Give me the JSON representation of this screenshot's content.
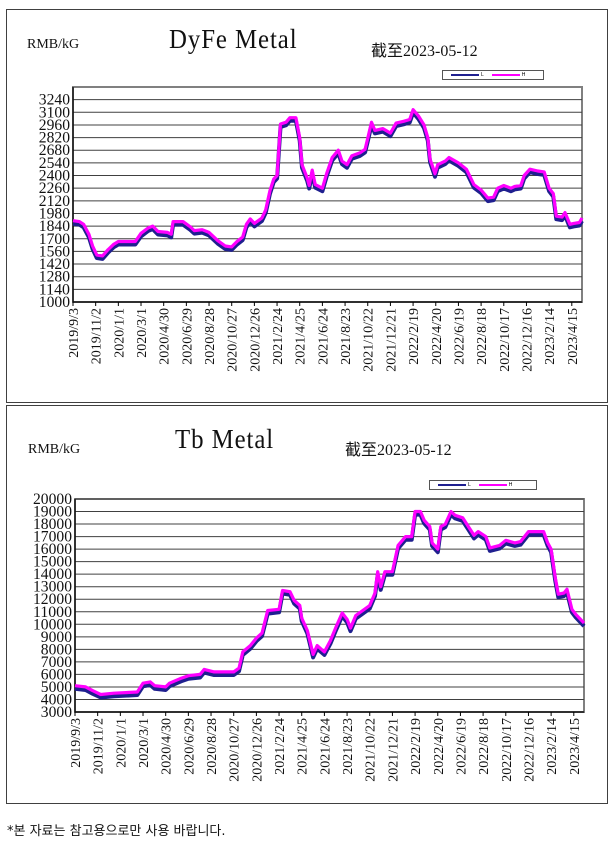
{
  "footnote": "*본 자료는 참고용으로만 사용 바랍니다.",
  "colors": {
    "L": "#1f1f8f",
    "H": "#ff00ff",
    "grid": "#404040"
  },
  "chart_data": [
    {
      "type": "line",
      "title": "DyFe Metal",
      "unit_label": "RMB/kG",
      "as_of": "截至2023-05-12",
      "ylim": [
        1000,
        3380
      ],
      "yticks": [
        1000,
        1140,
        1280,
        1420,
        1560,
        1700,
        1840,
        1980,
        2120,
        2260,
        2400,
        2540,
        2680,
        2820,
        2960,
        3100,
        3240
      ],
      "xlim": [
        "2019/9/3",
        "2023/5/12"
      ],
      "xticks": [
        "2019/9/3",
        "2019/11/2",
        "2020/1/1",
        "2020/3/1",
        "2020/4/30",
        "2020/6/29",
        "2020/8/28",
        "2020/10/27",
        "2020/12/26",
        "2021/2/24",
        "2021/4/25",
        "2021/6/24",
        "2021/8/23",
        "2021/10/22",
        "2021/12/21",
        "2022/2/19",
        "2022/4/20",
        "2022/6/19",
        "2022/8/18",
        "2022/10/17",
        "2022/12/16",
        "2023/2/14",
        "2023/4/15"
      ],
      "grid": true,
      "legend": "top-right",
      "x": [
        "2019/9/3",
        "2019/9/20",
        "2019/10/1",
        "2019/10/15",
        "2019/10/25",
        "2019/11/5",
        "2019/11/20",
        "2019/12/5",
        "2019/12/20",
        "2020/1/1",
        "2020/2/15",
        "2020/3/1",
        "2020/3/20",
        "2020/4/1",
        "2020/4/15",
        "2020/5/10",
        "2020/5/20",
        "2020/5/25",
        "2020/6/20",
        "2020/7/10",
        "2020/7/20",
        "2020/8/10",
        "2020/8/28",
        "2020/9/20",
        "2020/10/10",
        "2020/10/27",
        "2020/11/10",
        "2020/11/25",
        "2020/12/5",
        "2020/12/15",
        "2020/12/26",
        "2021/1/15",
        "2021/1/25",
        "2021/2/5",
        "2021/2/15",
        "2021/2/24",
        "2021/3/5",
        "2021/3/20",
        "2021/3/30",
        "2021/4/15",
        "2021/4/25",
        "2021/5/1",
        "2021/5/15",
        "2021/5/20",
        "2021/5/28",
        "2021/6/5",
        "2021/6/24",
        "2021/7/5",
        "2021/7/20",
        "2021/8/5",
        "2021/8/15",
        "2021/8/28",
        "2021/9/10",
        "2021/10/1",
        "2021/10/15",
        "2021/10/22",
        "2021/11/1",
        "2021/11/10",
        "2021/12/1",
        "2021/12/21",
        "2022/1/5",
        "2022/1/25",
        "2022/2/10",
        "2022/2/19",
        "2022/3/5",
        "2022/3/20",
        "2022/3/30",
        "2022/4/5",
        "2022/4/18",
        "2022/4/25",
        "2022/5/15",
        "2022/5/25",
        "2022/6/19",
        "2022/7/10",
        "2022/7/30",
        "2022/8/18",
        "2022/9/5",
        "2022/9/20",
        "2022/10/1",
        "2022/10/17",
        "2022/11/5",
        "2022/11/15",
        "2022/12/1",
        "2022/12/10",
        "2022/12/25",
        "2023/1/15",
        "2023/2/1",
        "2023/2/14",
        "2023/2/25",
        "2023/3/5",
        "2023/3/20",
        "2023/3/28",
        "2023/4/10",
        "2023/4/20",
        "2023/5/5",
        "2023/5/12"
      ],
      "series": [
        {
          "name": "L",
          "values": [
            1880,
            1870,
            1840,
            1730,
            1600,
            1500,
            1490,
            1560,
            1620,
            1650,
            1650,
            1740,
            1800,
            1820,
            1760,
            1750,
            1730,
            1870,
            1870,
            1810,
            1770,
            1780,
            1750,
            1660,
            1600,
            1590,
            1650,
            1700,
            1840,
            1900,
            1850,
            1910,
            2000,
            2210,
            2340,
            2380,
            2950,
            2970,
            3020,
            3020,
            2800,
            2500,
            2350,
            2270,
            2440,
            2280,
            2240,
            2400,
            2580,
            2660,
            2540,
            2500,
            2600,
            2630,
            2670,
            2790,
            2970,
            2880,
            2900,
            2850,
            2960,
            2980,
            3000,
            3110,
            3040,
            2940,
            2800,
            2560,
            2400,
            2500,
            2540,
            2580,
            2520,
            2450,
            2280,
            2220,
            2130,
            2140,
            2240,
            2270,
            2240,
            2260,
            2270,
            2380,
            2450,
            2430,
            2420,
            2240,
            2180,
            1930,
            1920,
            1970,
            1840,
            1850,
            1860,
            1910
          ]
        },
        {
          "name": "H",
          "values": [
            1900,
            1890,
            1860,
            1750,
            1620,
            1520,
            1510,
            1580,
            1640,
            1670,
            1670,
            1760,
            1820,
            1840,
            1780,
            1770,
            1750,
            1890,
            1890,
            1830,
            1790,
            1800,
            1770,
            1680,
            1620,
            1610,
            1670,
            1720,
            1860,
            1920,
            1870,
            1930,
            2020,
            2230,
            2360,
            2400,
            2970,
            2990,
            3040,
            3040,
            2820,
            2520,
            2370,
            2290,
            2460,
            2300,
            2260,
            2420,
            2600,
            2680,
            2560,
            2520,
            2620,
            2650,
            2690,
            2810,
            2990,
            2900,
            2920,
            2870,
            2980,
            3000,
            3020,
            3130,
            3060,
            2960,
            2820,
            2580,
            2420,
            2520,
            2560,
            2600,
            2540,
            2470,
            2300,
            2240,
            2150,
            2160,
            2260,
            2290,
            2260,
            2280,
            2290,
            2400,
            2470,
            2450,
            2440,
            2260,
            2200,
            1950,
            1940,
            1990,
            1860,
            1870,
            1880,
            1930
          ]
        }
      ]
    },
    {
      "type": "line",
      "title": "Tb Metal",
      "unit_label": "RMB/kG",
      "as_of": "截至2023-05-12",
      "ylim": [
        3000,
        20000
      ],
      "yticks": [
        3000,
        4000,
        5000,
        6000,
        7000,
        8000,
        9000,
        10000,
        11000,
        12000,
        13000,
        14000,
        15000,
        16000,
        17000,
        18000,
        19000,
        20000
      ],
      "xlim": [
        "2019/9/3",
        "2023/5/12"
      ],
      "xticks": [
        "2019/9/3",
        "2019/11/2",
        "2020/1/1",
        "2020/3/1",
        "2020/4/30",
        "2020/6/29",
        "2020/8/28",
        "2020/10/27",
        "2020/12/26",
        "2021/2/24",
        "2021/4/25",
        "2021/6/24",
        "2021/8/23",
        "2021/10/22",
        "2021/12/21",
        "2022/2/19",
        "2022/4/20",
        "2022/6/19",
        "2022/8/18",
        "2022/10/17",
        "2022/12/16",
        "2023/2/14",
        "2023/4/15"
      ],
      "grid": true,
      "legend": "top-right",
      "x": [
        "2019/9/3",
        "2019/10/1",
        "2019/10/20",
        "2019/11/10",
        "2019/12/15",
        "2020/2/15",
        "2020/3/1",
        "2020/3/20",
        "2020/4/1",
        "2020/4/30",
        "2020/5/10",
        "2020/6/10",
        "2020/6/29",
        "2020/7/30",
        "2020/8/10",
        "2020/9/5",
        "2020/10/27",
        "2020/11/10",
        "2020/11/20",
        "2020/12/10",
        "2020/12/26",
        "2021/1/10",
        "2021/1/25",
        "2021/2/24",
        "2021/3/5",
        "2021/3/25",
        "2021/4/5",
        "2021/4/20",
        "2021/4/25",
        "2021/5/10",
        "2021/5/25",
        "2021/6/5",
        "2021/6/24",
        "2021/7/10",
        "2021/7/25",
        "2021/8/10",
        "2021/8/23",
        "2021/9/1",
        "2021/9/15",
        "2021/10/22",
        "2021/11/5",
        "2021/11/12",
        "2021/11/20",
        "2021/12/1",
        "2021/12/21",
        "2022/1/5",
        "2022/1/25",
        "2022/2/10",
        "2022/2/19",
        "2022/3/5",
        "2022/3/15",
        "2022/3/30",
        "2022/4/5",
        "2022/4/20",
        "2022/4/28",
        "2022/5/10",
        "2022/5/25",
        "2022/6/5",
        "2022/6/25",
        "2022/7/10",
        "2022/7/25",
        "2022/8/5",
        "2022/8/25",
        "2022/9/5",
        "2022/10/1",
        "2022/10/17",
        "2022/11/10",
        "2022/11/25",
        "2022/12/16",
        "2023/1/25",
        "2023/2/5",
        "2023/2/14",
        "2023/2/25",
        "2023/3/5",
        "2023/3/20",
        "2023/3/28",
        "2023/4/10",
        "2023/4/20",
        "2023/5/12"
      ],
      "series": [
        {
          "name": "L",
          "values": [
            4950,
            4850,
            4550,
            4250,
            4350,
            4450,
            5150,
            5250,
            4950,
            4850,
            5150,
            5550,
            5750,
            5850,
            6250,
            6050,
            6050,
            6350,
            7650,
            8150,
            8750,
            9150,
            10950,
            11050,
            12550,
            12450,
            11750,
            11350,
            10350,
            9350,
            7450,
            8150,
            7650,
            8550,
            9650,
            10750,
            10250,
            9550,
            10550,
            11350,
            12350,
            14050,
            12850,
            14050,
            14050,
            16150,
            16850,
            16850,
            18850,
            18850,
            18150,
            17650,
            16350,
            15850,
            17650,
            17850,
            18850,
            18550,
            18350,
            17650,
            16950,
            17250,
            16850,
            15950,
            16150,
            16550,
            16350,
            16450,
            17250,
            17250,
            16350,
            15850,
            13550,
            12250,
            12350,
            12650,
            11050,
            10650,
            9950
          ]
        },
        {
          "name": "H",
          "values": [
            5100,
            5000,
            4700,
            4400,
            4500,
            4600,
            5300,
            5400,
            5100,
            5000,
            5300,
            5700,
            5900,
            6000,
            6400,
            6200,
            6200,
            6500,
            7800,
            8300,
            8900,
            9300,
            11100,
            11200,
            12700,
            12600,
            11900,
            11500,
            10500,
            9500,
            7600,
            8300,
            7800,
            8700,
            9800,
            10900,
            10400,
            9700,
            10700,
            11500,
            12500,
            14200,
            13000,
            14200,
            14200,
            16300,
            17000,
            17000,
            19000,
            19000,
            18300,
            17800,
            16500,
            16000,
            17800,
            18000,
            19000,
            18700,
            18500,
            17800,
            17100,
            17400,
            17000,
            16100,
            16300,
            16700,
            16500,
            16600,
            17400,
            17400,
            16500,
            16000,
            13700,
            12400,
            12500,
            12800,
            11200,
            10800,
            10100
          ]
        }
      ]
    }
  ]
}
